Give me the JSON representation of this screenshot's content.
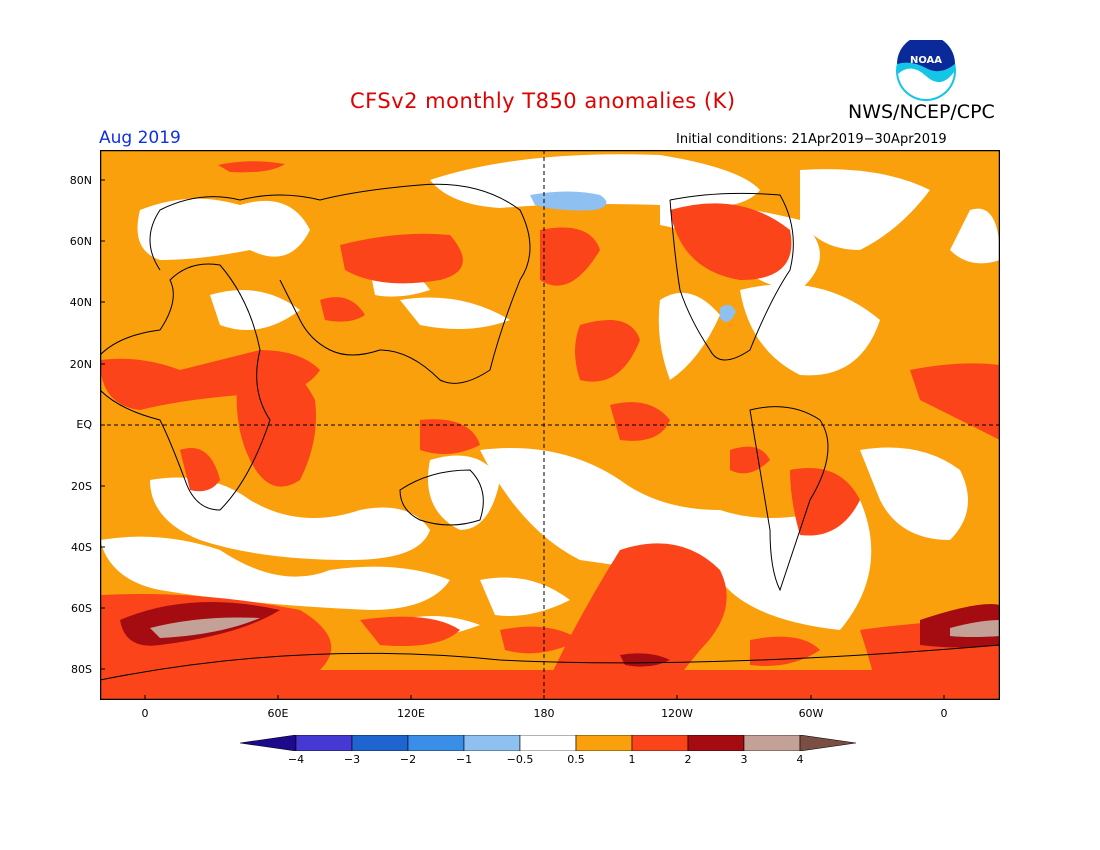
{
  "header": {
    "title": "CFSv2 monthly T850 anomalies (K)",
    "title_color": "#e00000",
    "organization": "NWS/NCEP/CPC",
    "valid_month": "Aug 2019",
    "valid_month_color": "#1030e0",
    "initial_conditions": "Initial conditions: 21Apr2019−30Apr2019"
  },
  "logo": {
    "text": "NOAA",
    "icon": "noaa-logo-icon"
  },
  "map": {
    "projection": "equirectangular",
    "lat_labels": [
      "80N",
      "60N",
      "40N",
      "20N",
      "EQ",
      "20S",
      "40S",
      "60S",
      "80S"
    ],
    "lon_labels": [
      "0",
      "60E",
      "120E",
      "180",
      "120W",
      "60W",
      "0"
    ],
    "reference_lines": [
      "equator",
      "dateline"
    ],
    "background_category": "0.5 to 1",
    "approximate_anomaly_regions": [
      {
        "region": "Arctic / northern Pacific",
        "category": "-0.5 to 0.5"
      },
      {
        "region": "northern Pacific near dateline",
        "category": "-1 to -0.5"
      },
      {
        "region": "North America interior",
        "category": "-0.5 to 0.5"
      },
      {
        "region": "North Africa / Sahel",
        "category": "1 to 2"
      },
      {
        "region": "southern Africa",
        "category": "1 to 2"
      },
      {
        "region": "Northern Canada",
        "category": "1 to 2"
      },
      {
        "region": "central North Pacific",
        "category": "1 to 2"
      },
      {
        "region": "South America interior",
        "category": "1 to 2"
      },
      {
        "region": "Southern Ocean",
        "category": "1 to 2"
      },
      {
        "region": "Weddell Sea",
        "category": "3 to 4"
      },
      {
        "region": "Antarctic interior",
        "category": "1 to 2"
      }
    ]
  },
  "colorbar": {
    "tick_labels": [
      "−4",
      "−3",
      "−2",
      "−1",
      "−0.5",
      "0.5",
      "1",
      "2",
      "3",
      "4"
    ],
    "colors": [
      "#1c0a8c",
      "#4638d2",
      "#1f65d0",
      "#3b8ee8",
      "#8fc0f2",
      "#ffffff",
      "#f9a00c",
      "#fb4419",
      "#a40c12",
      "#c4a196",
      "#7a4e42"
    ]
  }
}
